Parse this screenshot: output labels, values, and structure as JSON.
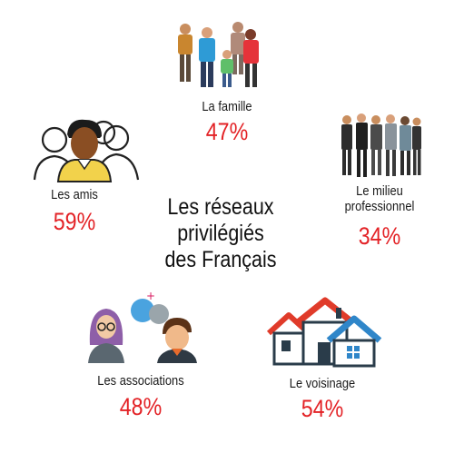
{
  "title_lines": [
    "Les réseaux",
    "privilégiés",
    "des Français"
  ],
  "colors": {
    "percent": "#e32226",
    "house_roof_red": "#e03b2a",
    "house_roof_blue": "#2f86c9",
    "bubble_blue": "#4aa3df",
    "bubble_grey": "#9aa5ab",
    "plus_pink": "#d81b60"
  },
  "chart_data": {
    "type": "table",
    "title": "Les réseaux privilégiés des Français",
    "unit": "%",
    "categories": [
      "La famille",
      "Le milieu professionnel",
      "Le voisinage",
      "Les associations",
      "Les amis"
    ],
    "values": [
      47,
      34,
      54,
      48,
      59
    ]
  },
  "items": {
    "famille": {
      "label": "La famille",
      "value": "47%",
      "icon": "family-icon"
    },
    "pro": {
      "label_lines": [
        "Le milieu",
        "professionnel"
      ],
      "value": "34%",
      "icon": "business-people-icon"
    },
    "voisinage": {
      "label": "Le voisinage",
      "value": "54%",
      "icon": "houses-icon"
    },
    "associations": {
      "label": "Les associations",
      "value": "48%",
      "icon": "associations-people-icon"
    },
    "amis": {
      "label": "Les amis",
      "value": "59%",
      "icon": "friends-group-icon"
    }
  }
}
